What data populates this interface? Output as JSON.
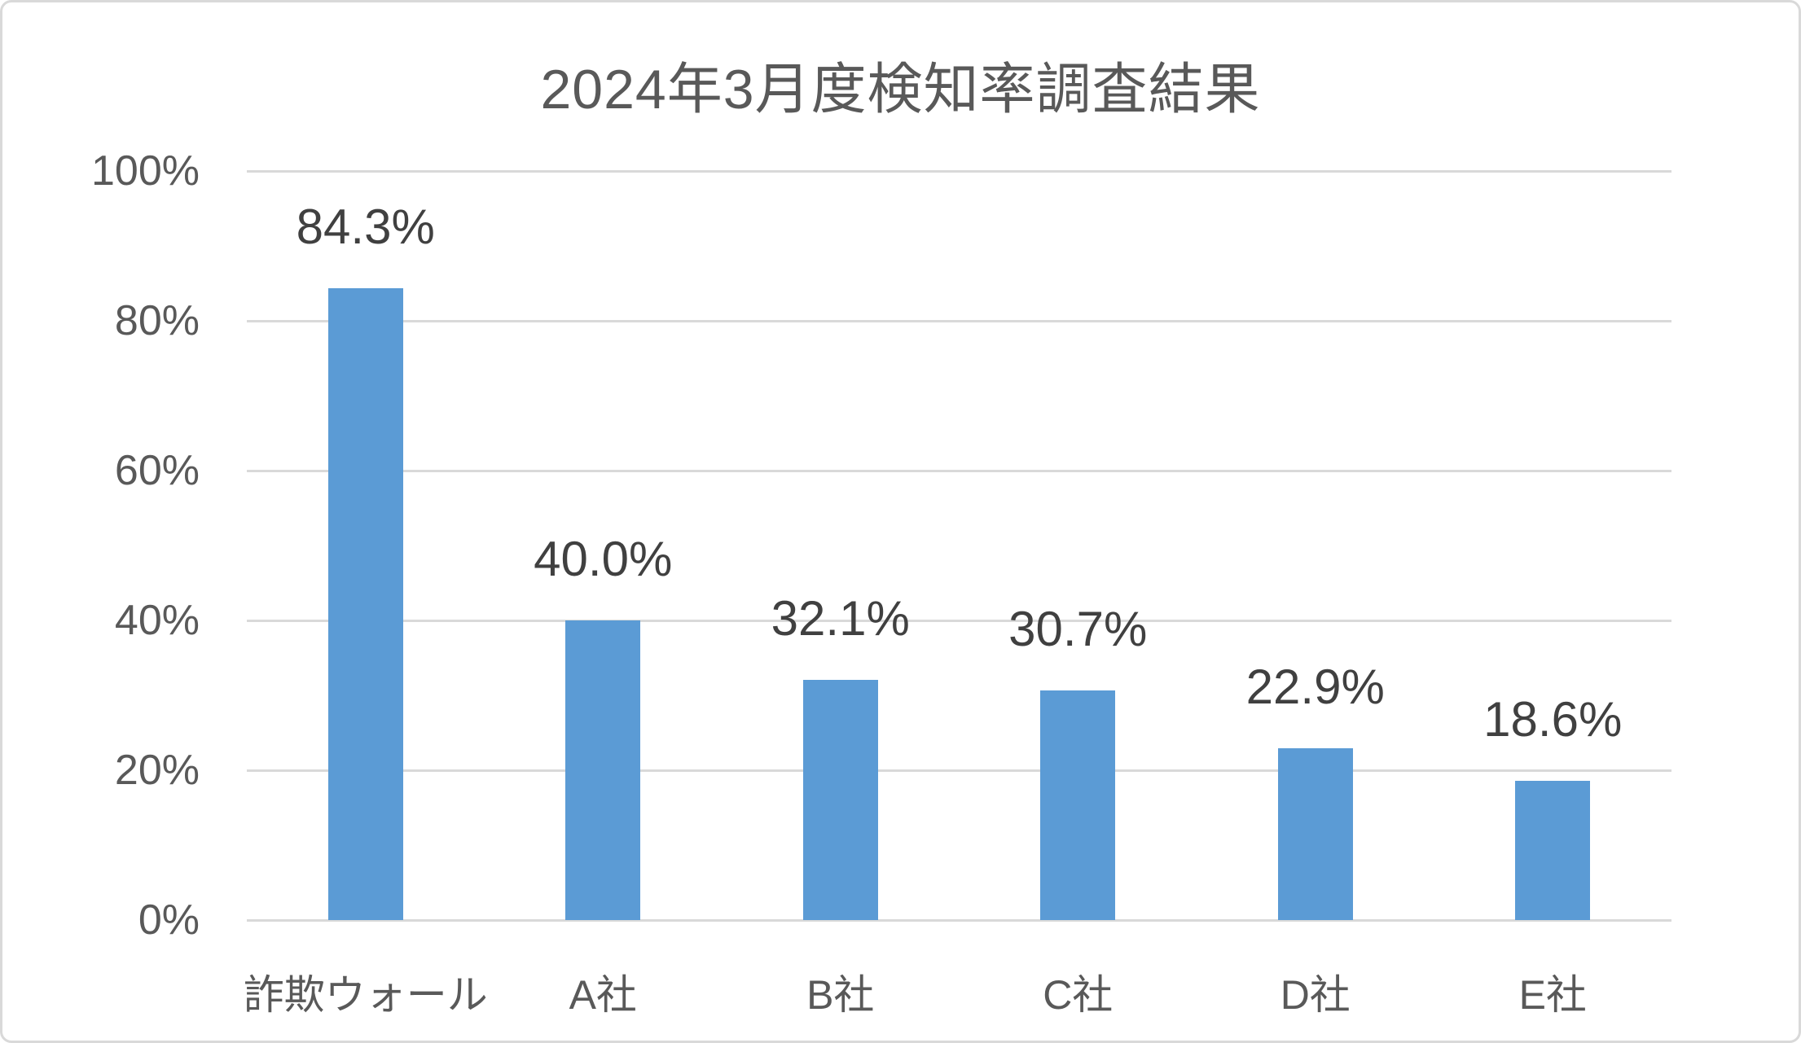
{
  "chart_data": {
    "type": "bar",
    "title": "2024年3月度検知率調査結果",
    "categories": [
      "詐欺ウォール",
      "A社",
      "B社",
      "C社",
      "D社",
      "E社"
    ],
    "values": [
      84.3,
      40.0,
      32.1,
      30.7,
      22.9,
      18.6
    ],
    "data_labels": [
      "84.3%",
      "40.0%",
      "32.1%",
      "30.7%",
      "22.9%",
      "18.6%"
    ],
    "y_ticks": [
      {
        "value": 0,
        "label": "0%"
      },
      {
        "value": 20,
        "label": "20%"
      },
      {
        "value": 40,
        "label": "40%"
      },
      {
        "value": 60,
        "label": "60%"
      },
      {
        "value": 80,
        "label": "80%"
      },
      {
        "value": 100,
        "label": "100%"
      }
    ],
    "ylim": [
      0,
      100
    ],
    "xlabel": "",
    "ylabel": "",
    "grid": true,
    "legend": false,
    "colors": {
      "bar": "#5b9bd5",
      "gridline": "#d9d9d9",
      "axis_text": "#595959",
      "data_label_text": "#404040",
      "title_text": "#595959",
      "border": "#d9d9d9",
      "background": "#ffffff"
    }
  }
}
